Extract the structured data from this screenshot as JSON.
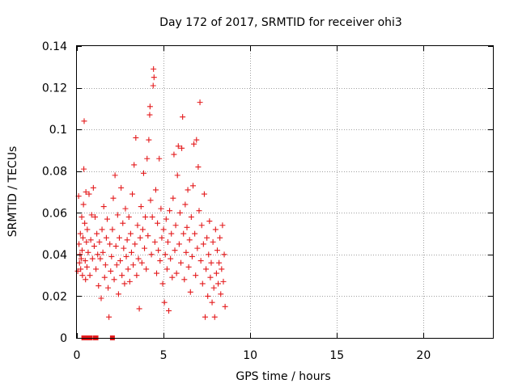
{
  "chart_data": {
    "type": "scatter",
    "title": "Day 172 of 2017, SRMTID for receiver ohi3",
    "xlabel": "GPS time / hours",
    "ylabel": "SRMTID / TECUs",
    "xlim": [
      0,
      24
    ],
    "ylim": [
      0,
      0.14
    ],
    "x_ticks": [
      0,
      5,
      10,
      15,
      20
    ],
    "x_tick_labels": [
      "0",
      "5",
      "10",
      "15",
      "20"
    ],
    "y_ticks": [
      0,
      0.02,
      0.04,
      0.06,
      0.08,
      0.1,
      0.12,
      0.14
    ],
    "y_tick_labels": [
      "0",
      "0.02",
      "0.04",
      "0.06",
      "0.08",
      "0.1",
      "0.12",
      "0.14"
    ],
    "grid": true,
    "marker": "+",
    "color": "#e41a1c",
    "series": [
      {
        "name": "SRMTID",
        "points": [
          [
            0.05,
            0.032
          ],
          [
            0.1,
            0.068
          ],
          [
            0.12,
            0.045
          ],
          [
            0.15,
            0.036
          ],
          [
            0.18,
            0.04
          ],
          [
            0.2,
            0.05
          ],
          [
            0.22,
            0.033
          ],
          [
            0.25,
            0.038
          ],
          [
            0.28,
            0.058
          ],
          [
            0.3,
            0.042
          ],
          [
            0.32,
            0.03
          ],
          [
            0.35,
            0.048
          ],
          [
            0.38,
            0.064
          ],
          [
            0.4,
            0.081
          ],
          [
            0.42,
            0.104
          ],
          [
            0.45,
            0.055
          ],
          [
            0.48,
            0.037
          ],
          [
            0.5,
            0.028
          ],
          [
            0.52,
            0.07
          ],
          [
            0.55,
            0.046
          ],
          [
            0.58,
            0.034
          ],
          [
            0.6,
            0.052
          ],
          [
            0.65,
            0.041
          ],
          [
            0.7,
            0.069
          ],
          [
            0.75,
            0.03
          ],
          [
            0.8,
            0.047
          ],
          [
            0.85,
            0.059
          ],
          [
            0.9,
            0.038
          ],
          [
            0.95,
            0.072
          ],
          [
            1.0,
            0.044
          ],
          [
            1.05,
            0.058
          ],
          [
            1.1,
            0.033
          ],
          [
            1.15,
            0.05
          ],
          [
            1.2,
            0.04
          ],
          [
            1.25,
            0.025
          ],
          [
            1.3,
            0.046
          ],
          [
            1.35,
            0.038
          ],
          [
            1.4,
            0.019
          ],
          [
            1.45,
            0.052
          ],
          [
            1.5,
            0.041
          ],
          [
            1.55,
            0.063
          ],
          [
            1.6,
            0.029
          ],
          [
            1.65,
            0.035
          ],
          [
            1.7,
            0.048
          ],
          [
            1.75,
            0.057
          ],
          [
            1.8,
            0.024
          ],
          [
            1.85,
            0.01
          ],
          [
            1.9,
            0.045
          ],
          [
            1.95,
            0.032
          ],
          [
            2.0,
            0.039
          ],
          [
            2.05,
            0.052
          ],
          [
            2.1,
            0.067
          ],
          [
            2.15,
            0.028
          ],
          [
            2.2,
            0.078
          ],
          [
            2.25,
            0.044
          ],
          [
            2.3,
            0.035
          ],
          [
            2.35,
            0.059
          ],
          [
            2.4,
            0.021
          ],
          [
            2.45,
            0.048
          ],
          [
            2.5,
            0.037
          ],
          [
            2.55,
            0.072
          ],
          [
            2.6,
            0.03
          ],
          [
            2.65,
            0.055
          ],
          [
            2.7,
            0.043
          ],
          [
            2.75,
            0.026
          ],
          [
            2.8,
            0.062
          ],
          [
            2.85,
            0.039
          ],
          [
            2.9,
            0.047
          ],
          [
            2.95,
            0.033
          ],
          [
            3.0,
            0.058
          ],
          [
            3.05,
            0.027
          ],
          [
            3.1,
            0.05
          ],
          [
            3.15,
            0.041
          ],
          [
            3.2,
            0.069
          ],
          [
            3.25,
            0.035
          ],
          [
            3.3,
            0.083
          ],
          [
            3.35,
            0.045
          ],
          [
            3.4,
            0.096
          ],
          [
            3.45,
            0.03
          ],
          [
            3.5,
            0.054
          ],
          [
            3.55,
            0.038
          ],
          [
            3.6,
            0.014
          ],
          [
            3.65,
            0.048
          ],
          [
            3.7,
            0.063
          ],
          [
            3.75,
            0.036
          ],
          [
            3.8,
            0.052
          ],
          [
            3.85,
            0.079
          ],
          [
            3.9,
            0.043
          ],
          [
            3.95,
            0.058
          ],
          [
            4.0,
            0.033
          ],
          [
            4.05,
            0.086
          ],
          [
            4.1,
            0.049
          ],
          [
            4.15,
            0.095
          ],
          [
            4.2,
            0.107
          ],
          [
            4.22,
            0.111
          ],
          [
            4.25,
            0.066
          ],
          [
            4.3,
            0.04
          ],
          [
            4.35,
            0.058
          ],
          [
            4.4,
            0.121
          ],
          [
            4.42,
            0.129
          ],
          [
            4.45,
            0.125
          ],
          [
            4.5,
            0.046
          ],
          [
            4.55,
            0.071
          ],
          [
            4.6,
            0.031
          ],
          [
            4.65,
            0.055
          ],
          [
            4.7,
            0.042
          ],
          [
            4.75,
            0.086
          ],
          [
            4.8,
            0.037
          ],
          [
            4.85,
            0.062
          ],
          [
            4.9,
            0.048
          ],
          [
            4.95,
            0.026
          ],
          [
            5.0,
            0.052
          ],
          [
            5.05,
            0.017
          ],
          [
            5.1,
            0.04
          ],
          [
            5.15,
            0.057
          ],
          [
            5.2,
            0.033
          ],
          [
            5.25,
            0.046
          ],
          [
            5.3,
            0.013
          ],
          [
            5.35,
            0.061
          ],
          [
            5.4,
            0.038
          ],
          [
            5.45,
            0.05
          ],
          [
            5.5,
            0.029
          ],
          [
            5.55,
            0.067
          ],
          [
            5.6,
            0.088
          ],
          [
            5.65,
            0.042
          ],
          [
            5.7,
            0.054
          ],
          [
            5.75,
            0.031
          ],
          [
            5.8,
            0.078
          ],
          [
            5.85,
            0.092
          ],
          [
            5.9,
            0.045
          ],
          [
            5.95,
            0.06
          ],
          [
            6.0,
            0.036
          ],
          [
            6.05,
            0.091
          ],
          [
            6.1,
            0.106
          ],
          [
            6.15,
            0.05
          ],
          [
            6.2,
            0.028
          ],
          [
            6.25,
            0.064
          ],
          [
            6.3,
            0.041
          ],
          [
            6.35,
            0.053
          ],
          [
            6.4,
            0.071
          ],
          [
            6.45,
            0.034
          ],
          [
            6.5,
            0.047
          ],
          [
            6.55,
            0.022
          ],
          [
            6.6,
            0.058
          ],
          [
            6.65,
            0.039
          ],
          [
            6.7,
            0.073
          ],
          [
            6.75,
            0.093
          ],
          [
            6.8,
            0.05
          ],
          [
            6.85,
            0.03
          ],
          [
            6.9,
            0.095
          ],
          [
            6.95,
            0.043
          ],
          [
            7.0,
            0.082
          ],
          [
            7.05,
            0.061
          ],
          [
            7.1,
            0.113
          ],
          [
            7.15,
            0.037
          ],
          [
            7.2,
            0.054
          ],
          [
            7.25,
            0.026
          ],
          [
            7.3,
            0.045
          ],
          [
            7.35,
            0.069
          ],
          [
            7.4,
            0.01
          ],
          [
            7.45,
            0.033
          ],
          [
            7.5,
            0.048
          ],
          [
            7.55,
            0.02
          ],
          [
            7.6,
            0.04
          ],
          [
            7.65,
            0.056
          ],
          [
            7.7,
            0.029
          ],
          [
            7.75,
            0.036
          ],
          [
            7.8,
            0.017
          ],
          [
            7.85,
            0.046
          ],
          [
            7.9,
            0.024
          ],
          [
            7.95,
            0.01
          ],
          [
            8.0,
            0.052
          ],
          [
            8.05,
            0.031
          ],
          [
            8.1,
            0.042
          ],
          [
            8.15,
            0.026
          ],
          [
            8.2,
            0.036
          ],
          [
            8.25,
            0.048
          ],
          [
            8.3,
            0.021
          ],
          [
            8.35,
            0.033
          ],
          [
            8.4,
            0.054
          ],
          [
            8.45,
            0.027
          ],
          [
            8.5,
            0.04
          ],
          [
            8.55,
            0.015
          ],
          [
            0.4,
            0.0
          ],
          [
            0.55,
            0.0
          ],
          [
            0.65,
            0.0
          ],
          [
            0.75,
            0.0
          ],
          [
            1.05,
            0.0
          ],
          [
            1.1,
            0.0
          ],
          [
            2.05,
            0.0
          ]
        ]
      }
    ]
  }
}
